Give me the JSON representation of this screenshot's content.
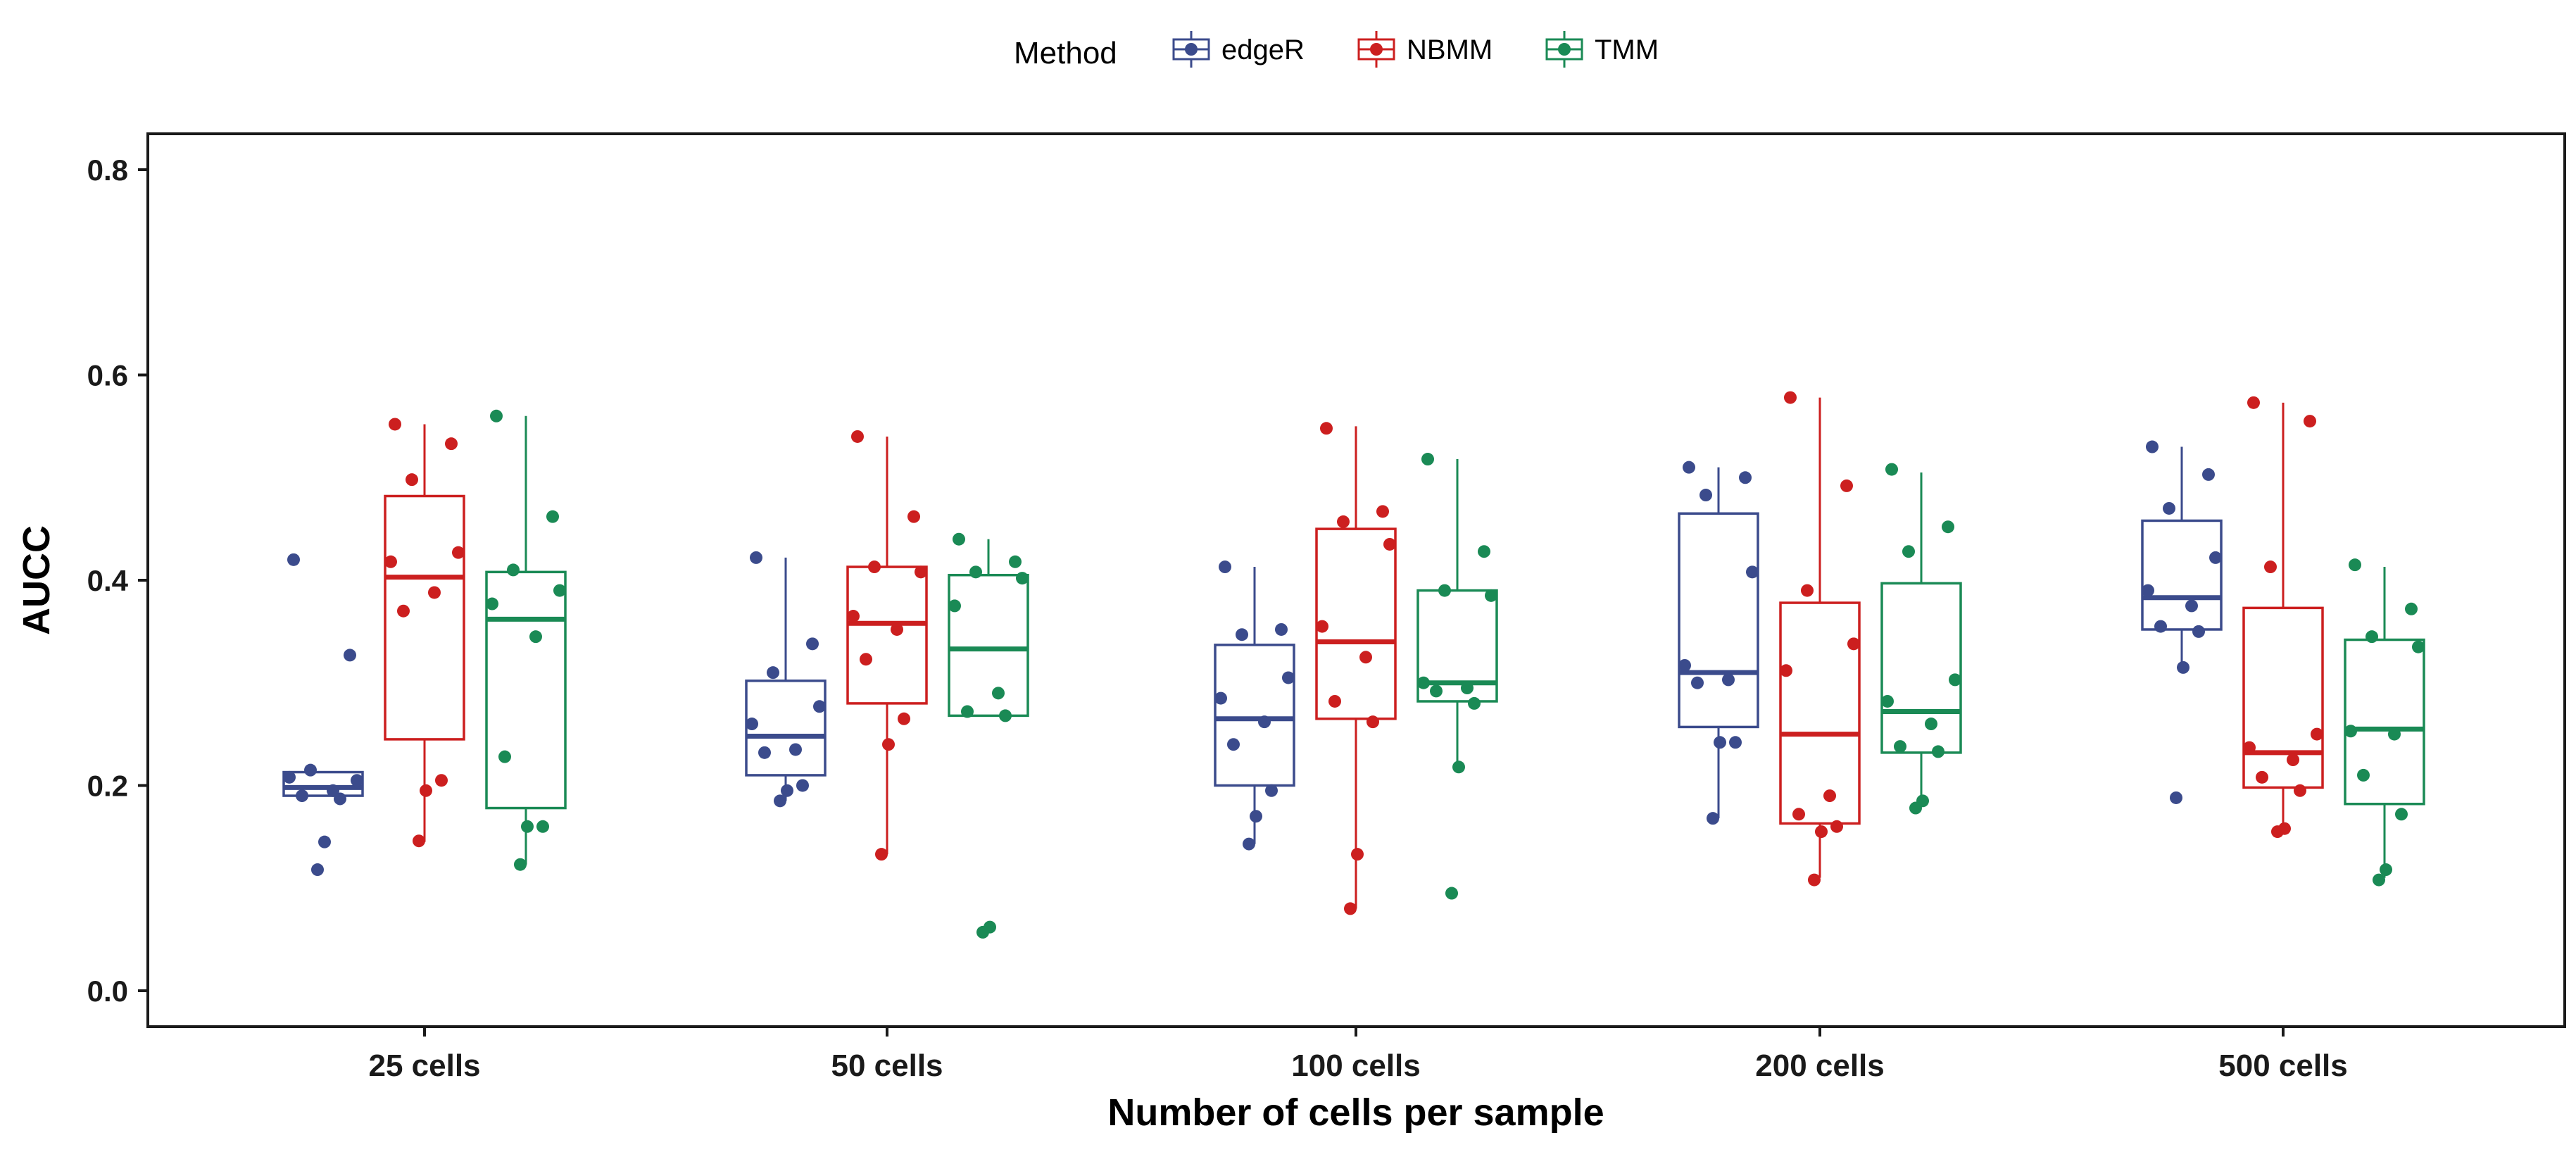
{
  "chart_data": {
    "type": "boxplot",
    "title": "",
    "xlabel": "Number of cells per sample",
    "ylabel": "AUCC",
    "ylim": [
      -0.035,
      0.835
    ],
    "yticks": [
      0.0,
      0.2,
      0.4,
      0.6,
      0.8
    ],
    "ytick_labels": [
      "0.0",
      "0.2",
      "0.4",
      "0.6",
      "0.8"
    ],
    "grid": false,
    "legend": {
      "title": "Method",
      "position": "top-center",
      "entries": [
        "edgeR",
        "NBMM",
        "TMM"
      ]
    },
    "categories": [
      "25 cells",
      "50 cells",
      "100 cells",
      "200 cells",
      "500 cells"
    ],
    "series": [
      {
        "name": "edgeR",
        "color": "#3b4b8c",
        "boxes": [
          {
            "min": 0.19,
            "q1": 0.19,
            "median": 0.198,
            "q3": 0.213,
            "max": 0.213,
            "points": [
              0.42,
              0.327,
              0.215,
              0.205,
              0.208,
              0.195,
              0.19,
              0.187,
              0.145,
              0.118
            ]
          },
          {
            "min": 0.185,
            "q1": 0.21,
            "median": 0.248,
            "q3": 0.302,
            "max": 0.422,
            "points": [
              0.422,
              0.338,
              0.31,
              0.277,
              0.26,
              0.235,
              0.232,
              0.2,
              0.195,
              0.185
            ]
          },
          {
            "min": 0.143,
            "q1": 0.2,
            "median": 0.265,
            "q3": 0.337,
            "max": 0.413,
            "points": [
              0.413,
              0.352,
              0.347,
              0.305,
              0.285,
              0.262,
              0.24,
              0.195,
              0.17,
              0.143
            ]
          },
          {
            "min": 0.168,
            "q1": 0.257,
            "median": 0.31,
            "q3": 0.465,
            "max": 0.51,
            "points": [
              0.51,
              0.5,
              0.483,
              0.408,
              0.317,
              0.303,
              0.3,
              0.242,
              0.242,
              0.168
            ]
          },
          {
            "min": 0.315,
            "q1": 0.352,
            "median": 0.383,
            "q3": 0.458,
            "max": 0.53,
            "points": [
              0.53,
              0.503,
              0.47,
              0.422,
              0.39,
              0.375,
              0.355,
              0.35,
              0.315,
              0.188
            ]
          }
        ]
      },
      {
        "name": "NBMM",
        "color": "#cc1f1f",
        "boxes": [
          {
            "min": 0.145,
            "q1": 0.245,
            "median": 0.403,
            "q3": 0.482,
            "max": 0.552,
            "points": [
              0.552,
              0.533,
              0.498,
              0.427,
              0.418,
              0.388,
              0.37,
              0.205,
              0.195,
              0.146
            ]
          },
          {
            "min": 0.133,
            "q1": 0.28,
            "median": 0.358,
            "q3": 0.413,
            "max": 0.54,
            "points": [
              0.54,
              0.462,
              0.413,
              0.408,
              0.365,
              0.352,
              0.323,
              0.265,
              0.24,
              0.133
            ]
          },
          {
            "min": 0.08,
            "q1": 0.265,
            "median": 0.34,
            "q3": 0.45,
            "max": 0.55,
            "points": [
              0.548,
              0.467,
              0.457,
              0.435,
              0.355,
              0.325,
              0.282,
              0.262,
              0.133,
              0.08
            ]
          },
          {
            "min": 0.11,
            "q1": 0.163,
            "median": 0.25,
            "q3": 0.378,
            "max": 0.578,
            "points": [
              0.578,
              0.492,
              0.39,
              0.338,
              0.312,
              0.19,
              0.172,
              0.16,
              0.155,
              0.108
            ]
          },
          {
            "min": 0.155,
            "q1": 0.198,
            "median": 0.232,
            "q3": 0.373,
            "max": 0.573,
            "points": [
              0.573,
              0.555,
              0.413,
              0.25,
              0.237,
              0.225,
              0.208,
              0.195,
              0.158,
              0.155
            ]
          }
        ]
      },
      {
        "name": "TMM",
        "color": "#1a8a55",
        "boxes": [
          {
            "min": 0.123,
            "q1": 0.178,
            "median": 0.362,
            "q3": 0.408,
            "max": 0.56,
            "points": [
              0.56,
              0.462,
              0.41,
              0.39,
              0.377,
              0.345,
              0.228,
              0.16,
              0.16,
              0.123
            ]
          },
          {
            "min": 0.268,
            "q1": 0.268,
            "median": 0.333,
            "q3": 0.405,
            "max": 0.44,
            "points": [
              0.44,
              0.418,
              0.408,
              0.402,
              0.375,
              0.29,
              0.272,
              0.268,
              0.062,
              0.057
            ]
          },
          {
            "min": 0.22,
            "q1": 0.282,
            "median": 0.3,
            "q3": 0.39,
            "max": 0.518,
            "points": [
              0.518,
              0.428,
              0.39,
              0.385,
              0.3,
              0.295,
              0.292,
              0.28,
              0.218,
              0.095
            ]
          },
          {
            "min": 0.18,
            "q1": 0.232,
            "median": 0.272,
            "q3": 0.397,
            "max": 0.505,
            "points": [
              0.508,
              0.452,
              0.428,
              0.303,
              0.282,
              0.26,
              0.238,
              0.233,
              0.185,
              0.178
            ]
          },
          {
            "min": 0.11,
            "q1": 0.182,
            "median": 0.255,
            "q3": 0.342,
            "max": 0.413,
            "points": [
              0.415,
              0.372,
              0.345,
              0.335,
              0.253,
              0.25,
              0.21,
              0.172,
              0.118,
              0.108
            ]
          }
        ]
      }
    ]
  }
}
